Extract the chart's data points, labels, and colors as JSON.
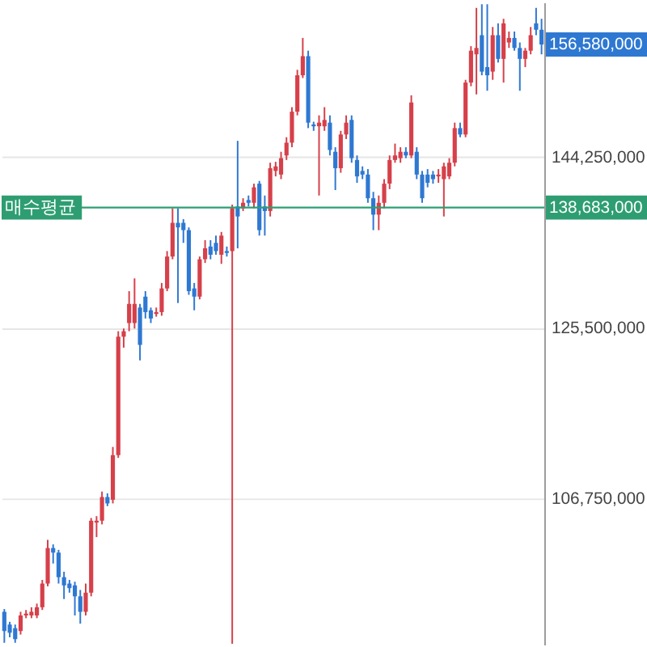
{
  "chart_data": {
    "type": "candlestick",
    "categories": [
      null,
      null,
      null,
      null,
      null,
      null,
      null,
      null,
      null,
      null,
      null,
      null,
      null,
      null,
      null,
      null,
      null,
      null,
      null,
      null,
      null,
      null,
      null,
      null,
      null,
      null,
      null,
      null,
      null,
      null,
      null,
      null,
      null,
      null,
      null,
      null,
      null,
      null,
      null,
      null,
      null,
      null,
      null,
      null,
      null,
      null,
      null,
      null,
      null,
      null,
      null,
      null,
      null,
      null,
      null,
      null,
      null,
      null,
      null,
      null,
      null,
      null,
      null,
      null,
      null,
      null,
      null,
      null,
      null,
      null,
      null,
      null,
      null,
      null,
      null,
      null,
      null,
      null,
      null,
      null,
      null,
      null,
      null,
      null,
      null,
      null,
      null,
      null,
      null,
      null,
      null,
      null,
      null,
      null,
      null,
      null,
      null,
      null,
      null,
      null
    ],
    "ohlc": [
      [
        94300000.0,
        94600000.0,
        90900000.0,
        92200000.0
      ],
      [
        92900000.0,
        93200000.0,
        91500000.0,
        92000000.0
      ],
      [
        92500000.0,
        92900000.0,
        90900000.0,
        91300000.0
      ],
      [
        92200000.0,
        94300000.0,
        91800000.0,
        93900000.0
      ],
      [
        93900000.0,
        94500000.0,
        93600000.0,
        94100000.0
      ],
      [
        93900000.0,
        94800000.0,
        93600000.0,
        94300000.0
      ],
      [
        93900000.0,
        95200000.0,
        93600000.0,
        94800000.0
      ],
      [
        94800000.0,
        97800000.0,
        94500000.0,
        97400000.0
      ],
      [
        97400000.0,
        102200000.0,
        97100000.0,
        101300000.0
      ],
      [
        101300000.0,
        101700000.0,
        99600000.0,
        100800000.0
      ],
      [
        100800000.0,
        101100000.0,
        97400000.0,
        98100000.0
      ],
      [
        98100000.0,
        98700000.0,
        95700000.0,
        97200000.0
      ],
      [
        97400000.0,
        97800000.0,
        96400000.0,
        96900000.0
      ],
      [
        97200000.0,
        97600000.0,
        93900000.0,
        96000000.0
      ],
      [
        96000000.0,
        96700000.0,
        93000000.0,
        94300000.0
      ],
      [
        94300000.0,
        97400000.0,
        93900000.0,
        96400000.0
      ],
      [
        96400000.0,
        104600000.0,
        96000000.0,
        104300000.0
      ],
      [
        104100000.0,
        104800000.0,
        102500000.0,
        104300000.0
      ],
      [
        104300000.0,
        107500000.0,
        103900000.0,
        106900000.0
      ],
      [
        106900000.0,
        107300000.0,
        105900000.0,
        106200000.0
      ],
      [
        106600000.0,
        112400000.0,
        106200000.0,
        111500000.0
      ],
      [
        111500000.0,
        125100000.0,
        111200000.0,
        124500000.0
      ],
      [
        124500000.0,
        125400000.0,
        123300000.0,
        125100000.0
      ],
      [
        126000000.0,
        129500000.0,
        125100000.0,
        128100000.0
      ],
      [
        126000000.0,
        130900000.0,
        125400000.0,
        128100000.0
      ],
      [
        127700000.0,
        128100000.0,
        121900000.0,
        123600000.0
      ],
      [
        128900000.0,
        129500000.0,
        126500000.0,
        127200000.0
      ],
      [
        127400000.0,
        127700000.0,
        126000000.0,
        126500000.0
      ],
      [
        127000000.0,
        127700000.0,
        126700000.0,
        127200000.0
      ],
      [
        127200000.0,
        130400000.0,
        126800000.0,
        129800000.0
      ],
      [
        129800000.0,
        133900000.0,
        129500000.0,
        133300000.0
      ],
      [
        133300000.0,
        138600000.0,
        133000000.0,
        137000000.0
      ],
      [
        137000000.0,
        138600000.0,
        128200000.0,
        136500000.0
      ],
      [
        137000000.0,
        137400000.0,
        134800000.0,
        136200000.0
      ],
      [
        136200000.0,
        136500000.0,
        129100000.0,
        129500000.0
      ],
      [
        129800000.0,
        130400000.0,
        127400000.0,
        128900000.0
      ],
      [
        128900000.0,
        133300000.0,
        128600000.0,
        133000000.0
      ],
      [
        133000000.0,
        135100000.0,
        132600000.0,
        134200000.0
      ],
      [
        134400000.0,
        135100000.0,
        133000000.0,
        133500000.0
      ],
      [
        134800000.0,
        135600000.0,
        133500000.0,
        133900000.0
      ],
      [
        133500000.0,
        136000000.0,
        132500000.0,
        135600000.0
      ],
      [
        133900000.0,
        134400000.0,
        133300000.0,
        133700000.0
      ],
      [
        133900000.0,
        139000000.0,
        90800000.0,
        138600000.0
      ],
      [
        138800000.0,
        146000000.0,
        134200000.0,
        137700000.0
      ],
      [
        138600000.0,
        139700000.0,
        138300000.0,
        139200000.0
      ],
      [
        139500000.0,
        140000000.0,
        138800000.0,
        139200000.0
      ],
      [
        139200000.0,
        141300000.0,
        138600000.0,
        140900000.0
      ],
      [
        141300000.0,
        141600000.0,
        135600000.0,
        136200000.0
      ],
      [
        138800000.0,
        140000000.0,
        135600000.0,
        138300000.0
      ],
      [
        138300000.0,
        143600000.0,
        137700000.0,
        143000000.0
      ],
      [
        142700000.0,
        143700000.0,
        142100000.0,
        143200000.0
      ],
      [
        142300000.0,
        144800000.0,
        141800000.0,
        144100000.0
      ],
      [
        144400000.0,
        146400000.0,
        143900000.0,
        145800000.0
      ],
      [
        145800000.0,
        149700000.0,
        145300000.0,
        149200000.0
      ],
      [
        149200000.0,
        153800000.0,
        148800000.0,
        153200000.0
      ],
      [
        153200000.0,
        157300000.0,
        152900000.0,
        155300000.0
      ],
      [
        155300000.0,
        155900000.0,
        147400000.0,
        148000000.0
      ],
      [
        147800000.0,
        148100000.0,
        147100000.0,
        147600000.0
      ],
      [
        147600000.0,
        148800000.0,
        140000000.0,
        148000000.0
      ],
      [
        147600000.0,
        149700000.0,
        147100000.0,
        148300000.0
      ],
      [
        148000000.0,
        148800000.0,
        144400000.0,
        145000000.0
      ],
      [
        144800000.0,
        145300000.0,
        140600000.0,
        143000000.0
      ],
      [
        143000000.0,
        147100000.0,
        142500000.0,
        146700000.0
      ],
      [
        146700000.0,
        148800000.0,
        146200000.0,
        148000000.0
      ],
      [
        148300000.0,
        148800000.0,
        143600000.0,
        144100000.0
      ],
      [
        143900000.0,
        144400000.0,
        141400000.0,
        142100000.0
      ],
      [
        142700000.0,
        143200000.0,
        141800000.0,
        142300000.0
      ],
      [
        142300000.0,
        142900000.0,
        139200000.0,
        139700000.0
      ],
      [
        139700000.0,
        140400000.0,
        136200000.0,
        137900000.0
      ],
      [
        137900000.0,
        140000000.0,
        136200000.0,
        139200000.0
      ],
      [
        139200000.0,
        141800000.0,
        138600000.0,
        141300000.0
      ],
      [
        141300000.0,
        144400000.0,
        140700000.0,
        143900000.0
      ],
      [
        143900000.0,
        145700000.0,
        143600000.0,
        144400000.0
      ],
      [
        144100000.0,
        145300000.0,
        143600000.0,
        144800000.0
      ],
      [
        144800000.0,
        145300000.0,
        144100000.0,
        144400000.0
      ],
      [
        144400000.0,
        151000000.0,
        144100000.0,
        150200000.0
      ],
      [
        144800000.0,
        145300000.0,
        141800000.0,
        142300000.0
      ],
      [
        142300000.0,
        142700000.0,
        139200000.0,
        139700000.0
      ],
      [
        142300000.0,
        142900000.0,
        140900000.0,
        141400000.0
      ],
      [
        142300000.0,
        142700000.0,
        141300000.0,
        141800000.0
      ],
      [
        142100000.0,
        142900000.0,
        141400000.0,
        142300000.0
      ],
      [
        141800000.0,
        143600000.0,
        137700000.0,
        143200000.0
      ],
      [
        142100000.0,
        144100000.0,
        141800000.0,
        143600000.0
      ],
      [
        143600000.0,
        148000000.0,
        143200000.0,
        147400000.0
      ],
      [
        147400000.0,
        148000000.0,
        146400000.0,
        146700000.0
      ],
      [
        146700000.0,
        152700000.0,
        146400000.0,
        152400000.0
      ],
      [
        152400000.0,
        156400000.0,
        152000000.0,
        155900000.0
      ],
      [
        155500000.0,
        160600000.0,
        151100000.0,
        156200000.0
      ],
      [
        157600000.0,
        161000000.0,
        153200000.0,
        153600000.0
      ],
      [
        154100000.0,
        161000000.0,
        151500000.0,
        153200000.0
      ],
      [
        153600000.0,
        158500000.0,
        152700000.0,
        157600000.0
      ],
      [
        157600000.0,
        158900000.0,
        154600000.0,
        155000000.0
      ],
      [
        155000000.0,
        159400000.0,
        152400000.0,
        158900000.0
      ],
      [
        156800000.0,
        158000000.0,
        156200000.0,
        157300000.0
      ],
      [
        157300000.0,
        158000000.0,
        155900000.0,
        156200000.0
      ],
      [
        156200000.0,
        156800000.0,
        151500000.0,
        155000000.0
      ],
      [
        155000000.0,
        156200000.0,
        154100000.0,
        155900000.0
      ],
      [
        155900000.0,
        158500000.0,
        155500000.0,
        157600000.0
      ],
      [
        158900000.0,
        160600000.0,
        157600000.0,
        158200000.0
      ],
      [
        158200000.0,
        159400000.0,
        155500000.0,
        156580000.0
      ]
    ],
    "colors": [
      "#2e78d2",
      "#2e78d2",
      "#2e78d2",
      "#d6404a",
      "#d6404a",
      "#d6404a",
      "#d6404a",
      "#d6404a",
      "#d6404a",
      "#2e78d2",
      "#2e78d2",
      "#2e78d2",
      "#2e78d2",
      "#2e78d2",
      "#2e78d2",
      "#d6404a",
      "#d6404a",
      "#d6404a",
      "#d6404a",
      "#2e78d2",
      "#d6404a",
      "#d6404a",
      "#d6404a",
      "#d6404a",
      "#d6404a",
      "#2e78d2",
      "#2e78d2",
      "#2e78d2",
      "#d6404a",
      "#d6404a",
      "#d6404a",
      "#d6404a",
      "#2e78d2",
      "#2e78d2",
      "#2e78d2",
      "#2e78d2",
      "#d6404a",
      "#d6404a",
      "#2e78d2",
      "#2e78d2",
      "#d6404a",
      "#2e78d2",
      "#d6404a",
      "#2e78d2",
      "#d6404a",
      "#2e78d2",
      "#d6404a",
      "#2e78d2",
      "#2e78d2",
      "#d6404a",
      "#d6404a",
      "#d6404a",
      "#d6404a",
      "#d6404a",
      "#d6404a",
      "#d6404a",
      "#2e78d2",
      "#2e78d2",
      "#d6404a",
      "#d6404a",
      "#2e78d2",
      "#2e78d2",
      "#d6404a",
      "#d6404a",
      "#2e78d2",
      "#2e78d2",
      "#2e78d2",
      "#2e78d2",
      "#2e78d2",
      "#d6404a",
      "#d6404a",
      "#d6404a",
      "#d6404a",
      "#d6404a",
      "#2e78d2",
      "#d6404a",
      "#2e78d2",
      "#2e78d2",
      "#2e78d2",
      "#2e78d2",
      "#d6404a",
      "#d6404a",
      "#d6404a",
      "#d6404a",
      "#2e78d2",
      "#d6404a",
      "#d6404a",
      "#d6404a",
      "#2e78d2",
      "#2e78d2",
      "#d6404a",
      "#2e78d2",
      "#d6404a",
      "#d6404a",
      "#2e78d2",
      "#2e78d2",
      "#d6404a",
      "#d6404a",
      "#2e78d2",
      "#2e78d2"
    ],
    "ylim": [
      90700000.0,
      161200000.0
    ],
    "yticks": [
      {
        "value": 106750000,
        "label": "106,750,000"
      },
      {
        "value": 125500000,
        "label": "125,500,000"
      },
      {
        "value": 144250000,
        "label": "144,250,000"
      }
    ],
    "grid": "y",
    "tick_labels": "y",
    "ref_lines": [
      {
        "axis": "y",
        "value": 138683000,
        "label": "매수평균",
        "color": "#2e9e72"
      }
    ],
    "annotations": [
      "156,580,000",
      "138,683,000"
    ]
  }
}
